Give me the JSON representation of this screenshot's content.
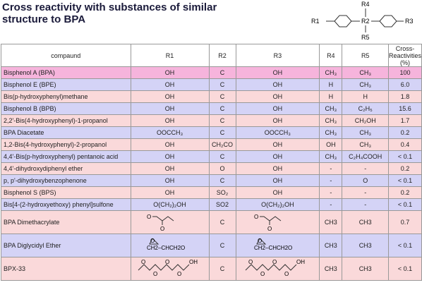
{
  "header": {
    "title": [
      "Cross reactivity with substances of similar",
      "structure to BPA"
    ]
  },
  "diagram": {
    "labels": [
      "R1",
      "R4",
      "R2",
      "R5",
      "R3"
    ]
  },
  "table": {
    "header": [
      "compaund",
      "R1",
      "R2",
      "R3",
      "R4",
      "R5",
      [
        "Cross-",
        "Reactivities",
        "(%)"
      ]
    ],
    "rows": [
      [
        "Bisphenol A (BPA)",
        "OH",
        "C",
        "OH",
        "CH₃",
        "CH₃",
        "100"
      ],
      [
        "Bisphenol E (BPE)",
        "OH",
        "C",
        "OH",
        "H",
        "CH₃",
        "6.0"
      ],
      [
        "Bis(p-hydroxyphenyl)methane",
        "OH",
        "C",
        "OH",
        "H",
        "H",
        "1.8"
      ],
      [
        "Bisphenol B (BPB)",
        "OH",
        "C",
        "OH",
        "CH₃",
        "C₂H₅",
        "15.6"
      ],
      [
        "2,2'-Bis(4-hydroxyphenyl)-1-propanol",
        "OH",
        "C",
        "OH",
        "CH₃",
        "CH₂OH",
        "1.7"
      ],
      [
        "BPA Diacetate",
        "OOCCH₃",
        "C",
        "OOCCH₃",
        "CH₃",
        "CH₃",
        "0.2"
      ],
      [
        "1,2-Bis(4-hydroxyphenyl)-2-propanol",
        "OH",
        "CH₂CO",
        "OH",
        "OH",
        "CH₃",
        "0.4"
      ],
      [
        "4,4'-Bis(p-hydroxyphenyl) pentanoic acid",
        "OH",
        "C",
        "OH",
        "CH₃",
        "C₂H₄COOH",
        "< 0.1"
      ],
      [
        "4,4'-dihydroxydiphenyl ether",
        "OH",
        "O",
        "OH",
        "-",
        "-",
        "0.2"
      ],
      [
        "p, p'-dihydroxybenzophenone",
        "OH",
        "C",
        "OH",
        "-",
        "O",
        "< 0.1"
      ],
      [
        "Bisphenol S (BPS)",
        "OH",
        "SO₂",
        "OH",
        "-",
        "-",
        "0.2"
      ],
      [
        "Bis[4-(2-hydroxyethoxy) phenyl]sulfone",
        "O(CH₂)₂OH",
        "SO2",
        "O(CH₂)₂OH",
        "-",
        "-",
        "< 0.1"
      ],
      [
        "BPA Dimethacrylate",
        [
          "O",
          "O"
        ],
        "C",
        [
          "O",
          "O"
        ],
        "CH3",
        "CH3",
        "0.7"
      ],
      [
        "BPA Diglycidyl Ether",
        [
          "O",
          "CH2–CHCH2O"
        ],
        "C",
        [
          "O",
          "CH2–CHCH2O"
        ],
        "CH3",
        "CH3",
        "< 0.1"
      ],
      [
        "BPX-33",
        [
          "O",
          "O",
          "O",
          "O",
          "OH"
        ],
        "C",
        [
          "O",
          "O",
          "O",
          "O",
          "OH"
        ],
        "CH3",
        "CH3",
        "< 0.1"
      ]
    ]
  }
}
